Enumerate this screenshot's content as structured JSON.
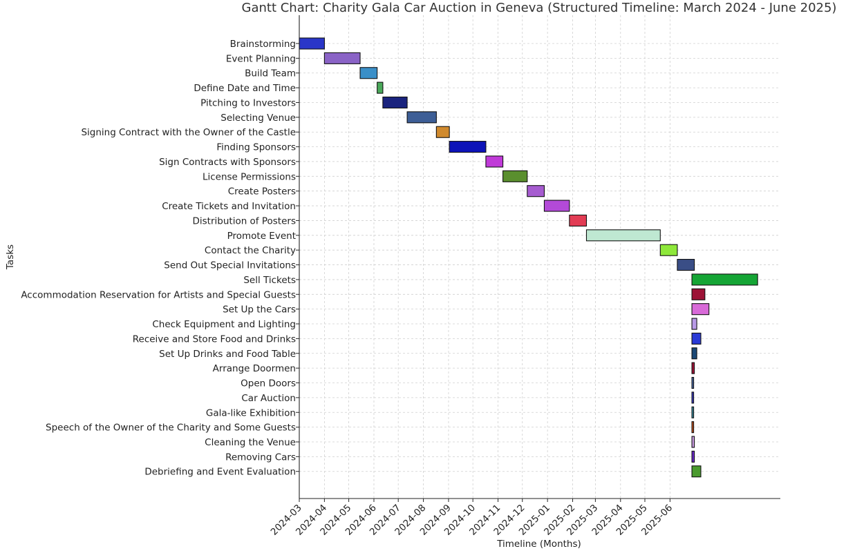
{
  "chart_data": {
    "type": "gantt",
    "title": "Gantt Chart: Charity Gala Car Auction in Geneva (Structured Timeline: March 2024 - June 2025)",
    "xlabel": "Timeline (Months)",
    "ylabel": "Tasks",
    "x_ticks": [
      "2024-03",
      "2024-04",
      "2024-05",
      "2024-06",
      "2024-07",
      "2024-08",
      "2024-09",
      "2024-10",
      "2024-11",
      "2024-12",
      "2025-01",
      "2025-02",
      "2025-03",
      "2025-04",
      "2025-05",
      "2025-06"
    ],
    "xlim": [
      "2024-03-01",
      "2025-10-15"
    ],
    "grid": true,
    "tasks": [
      {
        "name": "Brainstorming",
        "start": "2024-03-01",
        "end": "2024-04-01",
        "color": "#2a36c8"
      },
      {
        "name": "Event Planning",
        "start": "2024-04-01",
        "end": "2024-05-15",
        "color": "#8a63c6"
      },
      {
        "name": "Build Team",
        "start": "2024-05-15",
        "end": "2024-06-05",
        "color": "#3a8fc8"
      },
      {
        "name": "Define Date and Time",
        "start": "2024-06-05",
        "end": "2024-06-12",
        "color": "#4aa95a"
      },
      {
        "name": "Pitching to Investors",
        "start": "2024-06-12",
        "end": "2024-07-12",
        "color": "#1a237e"
      },
      {
        "name": "Selecting Venue",
        "start": "2024-07-12",
        "end": "2024-08-17",
        "color": "#3d5e96"
      },
      {
        "name": "Signing Contract with the Owner of the Castle",
        "start": "2024-08-17",
        "end": "2024-09-02",
        "color": "#d08a2e"
      },
      {
        "name": "Finding Sponsors",
        "start": "2024-09-02",
        "end": "2024-10-17",
        "color": "#0d13b8"
      },
      {
        "name": "Sign Contracts with Sponsors",
        "start": "2024-10-17",
        "end": "2024-11-07",
        "color": "#c03ad8"
      },
      {
        "name": "License Permissions",
        "start": "2024-11-07",
        "end": "2024-12-07",
        "color": "#5a8f2e"
      },
      {
        "name": "Create Posters",
        "start": "2024-12-07",
        "end": "2024-12-28",
        "color": "#a65cd0"
      },
      {
        "name": "Create Tickets and Invitation",
        "start": "2024-12-28",
        "end": "2025-01-28",
        "color": "#b34ad8"
      },
      {
        "name": "Distribution of Posters",
        "start": "2025-01-28",
        "end": "2025-02-18",
        "color": "#e23c54"
      },
      {
        "name": "Promote Event",
        "start": "2025-02-18",
        "end": "2025-05-20",
        "color": "#bfe8d2"
      },
      {
        "name": "Contact the Charity",
        "start": "2025-05-20",
        "end": "2025-06-10",
        "color": "#8ee83a"
      },
      {
        "name": "Send Out Special Invitations",
        "start": "2025-06-10",
        "end": "2025-07-01",
        "color": "#3a4e86"
      },
      {
        "name": "Sell Tickets",
        "start": "2025-06-28",
        "end": "2025-09-17",
        "color": "#15a535"
      },
      {
        "name": "Accommodation Reservation for Artists and Special Guests",
        "start": "2025-06-28",
        "end": "2025-07-14",
        "color": "#9c1236"
      },
      {
        "name": "Set Up the Cars",
        "start": "2025-06-28",
        "end": "2025-07-19",
        "color": "#d86ad8"
      },
      {
        "name": "Check Equipment and Lighting",
        "start": "2025-06-28",
        "end": "2025-07-04",
        "color": "#b89ae6"
      },
      {
        "name": "Receive and Store Food and Drinks",
        "start": "2025-06-28",
        "end": "2025-07-09",
        "color": "#2a3ad6"
      },
      {
        "name": "Set Up Drinks and Food Table",
        "start": "2025-06-28",
        "end": "2025-07-04",
        "color": "#1b4876"
      },
      {
        "name": "Arrange Doormen",
        "start": "2025-06-28",
        "end": "2025-07-01",
        "color": "#9c1236"
      },
      {
        "name": "Open Doors",
        "start": "2025-06-28",
        "end": "2025-06-30",
        "color": "#4a6aa8"
      },
      {
        "name": "Car Auction",
        "start": "2025-06-28",
        "end": "2025-06-30",
        "color": "#3a3ac8"
      },
      {
        "name": "Gala-like Exhibition",
        "start": "2025-06-28",
        "end": "2025-06-30",
        "color": "#3a8ea0"
      },
      {
        "name": "Speech of the Owner of the Charity and Some Guests",
        "start": "2025-06-28",
        "end": "2025-06-30",
        "color": "#c8501a"
      },
      {
        "name": "Cleaning the Venue",
        "start": "2025-06-28",
        "end": "2025-07-01",
        "color": "#c89ae0"
      },
      {
        "name": "Removing Cars",
        "start": "2025-06-28",
        "end": "2025-07-01",
        "color": "#6a2ac8"
      },
      {
        "name": "Debriefing and Event Evaluation",
        "start": "2025-06-28",
        "end": "2025-07-09",
        "color": "#4a9a2e"
      }
    ]
  }
}
